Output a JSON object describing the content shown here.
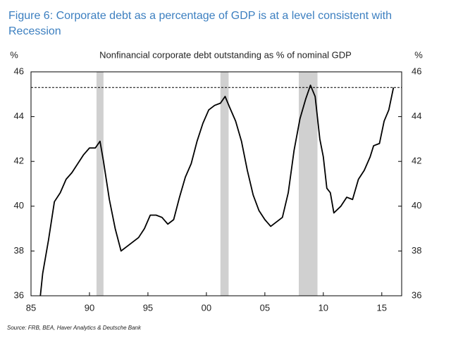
{
  "figure_title": "Figure 6: Corporate debt as a percentage of GDP is at a level consistent with Recession",
  "source": "Source: FRB, BEA, Haver Analytics & Deutsche Bank",
  "chart_data": {
    "type": "line",
    "title": "Nonfinancial corporate debt outstanding as % of nominal GDP",
    "y_label": "%",
    "y2_label": "%",
    "x": [
      1985.8,
      1986,
      1986.5,
      1987,
      1987.5,
      1988,
      1988.5,
      1989,
      1989.5,
      1990,
      1990.5,
      1990.9,
      1991.2,
      1991.7,
      1992.2,
      1992.7,
      1993.2,
      1993.7,
      1994.2,
      1994.7,
      1995.2,
      1995.7,
      1996.2,
      1996.7,
      1997.2,
      1997.7,
      1998.2,
      1998.7,
      1999.2,
      1999.7,
      2000.2,
      2000.7,
      2001.2,
      2001.6,
      2002,
      2002.5,
      2003,
      2003.5,
      2004,
      2004.5,
      2005,
      2005.5,
      2006,
      2006.5,
      2007,
      2007.5,
      2008,
      2008.5,
      2008.9,
      2009.3,
      2009.7,
      2010,
      2010.3,
      2010.6,
      2010.9,
      2011.5,
      2012,
      2012.5,
      2013,
      2013.5,
      2014,
      2014.3,
      2014.8,
      2015.2,
      2015.6,
      2016
    ],
    "series": [
      {
        "name": "Nonfinancial corporate debt",
        "color": "#000000",
        "values": [
          36.0,
          37.0,
          38.5,
          40.2,
          40.6,
          41.2,
          41.5,
          41.9,
          42.3,
          42.6,
          42.6,
          42.9,
          42.0,
          40.3,
          39.0,
          38.0,
          38.2,
          38.4,
          38.6,
          39.0,
          39.6,
          39.6,
          39.5,
          39.2,
          39.4,
          40.4,
          41.3,
          41.9,
          42.9,
          43.7,
          44.3,
          44.5,
          44.6,
          44.9,
          44.4,
          43.8,
          42.9,
          41.6,
          40.5,
          39.8,
          39.4,
          39.1,
          39.3,
          39.5,
          40.6,
          42.5,
          43.9,
          44.8,
          45.4,
          44.9,
          43.0,
          42.2,
          40.8,
          40.6,
          39.7,
          40.0,
          40.4,
          40.3,
          41.2,
          41.6,
          42.2,
          42.7,
          42.8,
          43.8,
          44.3,
          45.3
        ]
      }
    ],
    "recessions": [
      [
        1990.6,
        1991.2
      ],
      [
        2001.2,
        2001.9
      ],
      [
        2007.9,
        2009.5
      ]
    ],
    "recession_color": "#d0d0d0",
    "reference_line": 45.3,
    "xlim": [
      1985,
      2016.7
    ],
    "xticks": [
      {
        "value": 1985,
        "label": "85"
      },
      {
        "value": 1990,
        "label": "90"
      },
      {
        "value": 1995,
        "label": "95"
      },
      {
        "value": 2000,
        "label": "00"
      },
      {
        "value": 2005,
        "label": "05"
      },
      {
        "value": 2010,
        "label": "10"
      },
      {
        "value": 2015,
        "label": "15"
      }
    ],
    "ylim": [
      36,
      46
    ],
    "yticks": [
      36,
      38,
      40,
      42,
      44,
      46
    ],
    "y2lim": [
      36,
      46
    ],
    "y2ticks": [
      36,
      38,
      40,
      42,
      44,
      46
    ],
    "grid": false
  }
}
